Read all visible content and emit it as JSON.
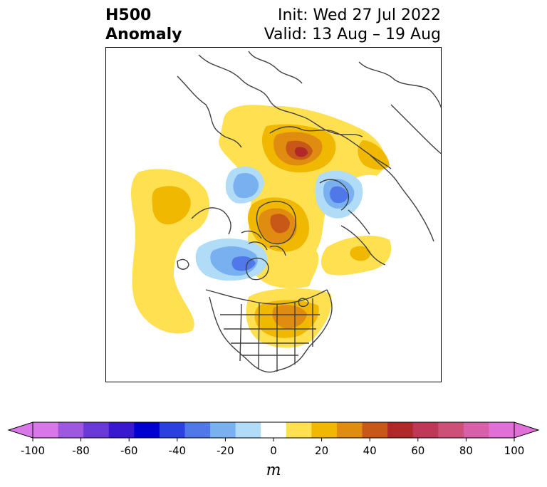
{
  "title": {
    "left_line1": "H500",
    "left_line2": "Anomaly",
    "right_line1": "Init: Wed 27 Jul 2022",
    "right_line2": "Valid: 13 Aug – 19 Aug"
  },
  "colorbar": {
    "units": "m",
    "ticks": [
      "-100",
      "-80",
      "-60",
      "-40",
      "-20",
      "0",
      "20",
      "40",
      "60",
      "80",
      "100"
    ],
    "colors": [
      "#d878e8",
      "#9e58e0",
      "#6a3ad8",
      "#3a18d0",
      "#0000d0",
      "#2a40e0",
      "#5078e8",
      "#78b0f0",
      "#b0dcf8",
      "#ffffff",
      "#ffe050",
      "#f0b800",
      "#e08c10",
      "#c85818",
      "#b02828",
      "#c03858",
      "#cc5078",
      "#d860a8",
      "#e070d8"
    ],
    "extend_low_color": "#d878e8",
    "extend_high_color": "#e070d8"
  }
}
